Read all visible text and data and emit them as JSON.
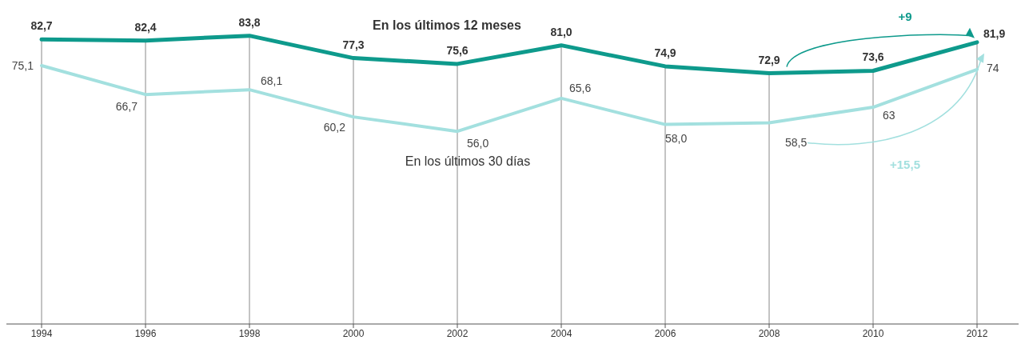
{
  "chart_data": {
    "type": "line",
    "categories": [
      "1994",
      "1996",
      "1998",
      "2000",
      "2002",
      "2004",
      "2006",
      "2008",
      "2010",
      "2012"
    ],
    "tick_labels": "x",
    "grid": "x",
    "marker": "none",
    "line_style": "solid",
    "series": [
      {
        "name": "En los últimos 12 meses",
        "color": "#0e9a8c",
        "values": [
          82.7,
          82.4,
          83.8,
          77.3,
          75.6,
          81.0,
          74.9,
          72.9,
          73.6,
          81.9
        ],
        "value_labels": [
          "82,7",
          "82,4",
          "83,8",
          "77,3",
          "75,6",
          "81,0",
          "74,9",
          "72,9",
          "73,6",
          "81,9"
        ]
      },
      {
        "name": "En los últimos 30 días",
        "color": "#a3e0df",
        "values": [
          75.1,
          66.7,
          68.1,
          60.2,
          56.0,
          65.6,
          58.0,
          58.5,
          63,
          74
        ],
        "value_labels": [
          "75,1",
          "66,7",
          "68,1",
          "60,2",
          "56,0",
          "65,6",
          "58,0",
          "58,5",
          "63",
          "74"
        ]
      }
    ],
    "annotations": [
      "+9",
      "+15,5"
    ]
  }
}
